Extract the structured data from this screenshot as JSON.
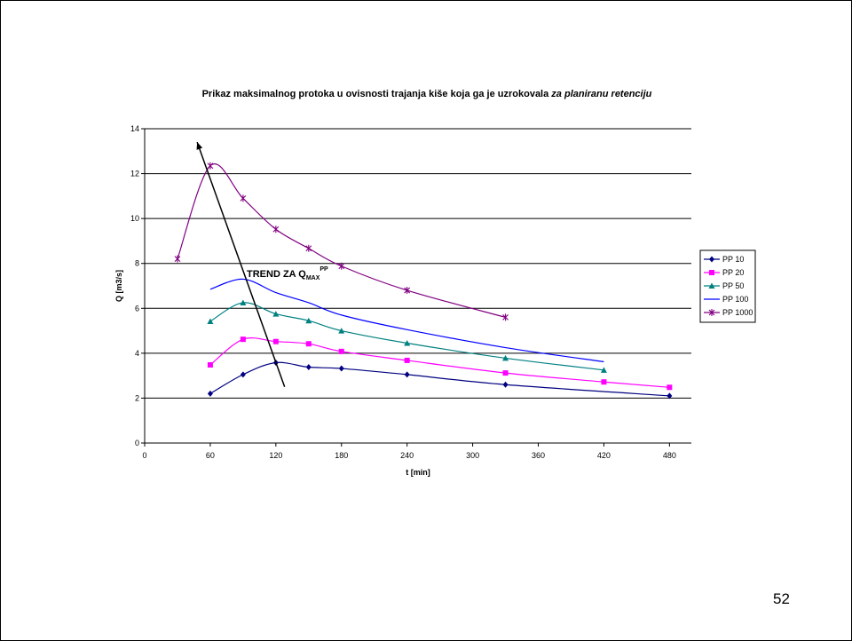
{
  "chart_data": {
    "type": "line",
    "title": "Prikaz maksimalnog protoka u ovisnosti trajanja kiše koja ga je uzrokovala",
    "title_italic": "za planiranu retenciju",
    "xlabel": "t [min]",
    "ylabel": "Q [m3/s]",
    "xlim": [
      0,
      500
    ],
    "ylim": [
      0,
      14
    ],
    "xticks": [
      0,
      60,
      120,
      180,
      240,
      300,
      360,
      420,
      480
    ],
    "yticks": [
      0,
      2,
      4,
      6,
      8,
      10,
      12,
      14
    ],
    "grid": "horizontal",
    "legend_position": "right",
    "series": [
      {
        "name": "PP 10",
        "color": "#000080",
        "marker": "diamond",
        "x": [
          60,
          90,
          120,
          150,
          180,
          240,
          330,
          480
        ],
        "y": [
          2.2,
          3.05,
          3.58,
          3.38,
          3.32,
          3.05,
          2.6,
          2.1
        ]
      },
      {
        "name": "PP 20",
        "color": "#ff00ff",
        "marker": "square",
        "x": [
          60,
          90,
          120,
          150,
          180,
          240,
          330,
          420,
          480
        ],
        "y": [
          3.48,
          4.62,
          4.52,
          4.42,
          4.08,
          3.68,
          3.12,
          2.72,
          2.48
        ]
      },
      {
        "name": "PP 50",
        "color": "#008080",
        "marker": "triangle",
        "x": [
          60,
          90,
          120,
          150,
          180,
          240,
          330,
          420
        ],
        "y": [
          5.42,
          6.25,
          5.75,
          5.45,
          5.0,
          4.45,
          3.78,
          3.25
        ]
      },
      {
        "name": "PP 100",
        "color": "#0000ff",
        "marker": "none",
        "x": [
          60,
          90,
          120,
          150,
          180,
          240,
          330,
          420
        ],
        "y": [
          6.85,
          7.3,
          6.7,
          6.25,
          5.7,
          5.05,
          4.25,
          3.62
        ]
      },
      {
        "name": "PP 1000",
        "color": "#800080",
        "marker": "star",
        "x": [
          30,
          60,
          90,
          120,
          150,
          180,
          240,
          330
        ],
        "y": [
          8.2,
          12.35,
          10.9,
          9.52,
          8.67,
          7.88,
          6.8,
          5.6
        ]
      }
    ],
    "annotation": {
      "text": "TREND ZA Q",
      "sub": "MAX",
      "sup": "PP",
      "arrow_from": [
        128,
        2.5
      ],
      "arrow_to": [
        48,
        13.4
      ]
    }
  },
  "page_number": "52"
}
